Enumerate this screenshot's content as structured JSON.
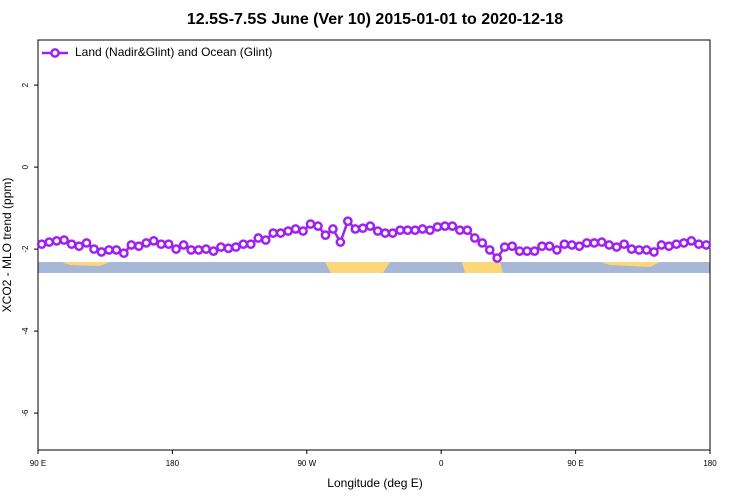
{
  "chart_data": {
    "type": "line",
    "title": "12.5S-7.5S June (Ver 10)   2015-01-01 to 2020-12-18",
    "x_label": "Longitude (deg E)",
    "y_label": "XCO2 - MLO trend (ppm)",
    "xlim": [
      90,
      540
    ],
    "ylim": [
      -6.9,
      3.1
    ],
    "xticks": [
      {
        "value": 90,
        "label": "90 E"
      },
      180,
      {
        "value": 270,
        "label": "90 W"
      },
      {
        "value": 360,
        "label": "0"
      },
      {
        "value": 450,
        "label": "90 E"
      },
      {
        "value": 540,
        "label": "180"
      }
    ],
    "yticks": [
      2,
      0,
      -2,
      -4,
      -6
    ],
    "legend": "top-left",
    "x": [
      92.5,
      97.5,
      102.5,
      107.5,
      112.5,
      117.5,
      122.5,
      127.5,
      132.5,
      137.5,
      142.5,
      147.5,
      152.5,
      157.5,
      162.5,
      167.5,
      172.5,
      177.5,
      182.5,
      187.5,
      192.5,
      197.5,
      202.5,
      207.5,
      212.5,
      217.5,
      222.5,
      227.5,
      232.5,
      237.5,
      242.5,
      247.5,
      252.5,
      257.5,
      262.5,
      267.5,
      272.5,
      277.5,
      282.5,
      287.5,
      292.5,
      297.5,
      302.5,
      307.5,
      312.5,
      317.5,
      322.5,
      327.5,
      332.5,
      337.5,
      342.5,
      347.5,
      352.5,
      357.5,
      362.5,
      367.5,
      372.5,
      377.5,
      382.5,
      387.5,
      392.5,
      397.5,
      402.5,
      407.5,
      412.5,
      417.5,
      422.5,
      427.5,
      432.5,
      437.5,
      442.5,
      447.5,
      452.5,
      457.5,
      462.5,
      467.5,
      472.5,
      477.5,
      482.5,
      487.5,
      492.5,
      497.5,
      502.5,
      507.5,
      512.5,
      517.5,
      522.5,
      527.5,
      532.5,
      537.5
    ],
    "series": [
      {
        "name": "Land (Nadir&Glint) and Ocean (Glint)",
        "color": "#a020f0",
        "values": [
          -1.88,
          -1.83,
          -1.8,
          -1.78,
          -1.88,
          -1.93,
          -1.85,
          -2.0,
          -2.07,
          -2.02,
          -2.02,
          -2.1,
          -1.9,
          -1.93,
          -1.85,
          -1.8,
          -1.88,
          -1.88,
          -2.0,
          -1.9,
          -2.02,
          -2.02,
          -2.0,
          -2.05,
          -1.95,
          -1.98,
          -1.95,
          -1.88,
          -1.88,
          -1.73,
          -1.78,
          -1.61,
          -1.61,
          -1.56,
          -1.51,
          -1.56,
          -1.39,
          -1.44,
          -1.66,
          -1.51,
          -1.83,
          -1.32,
          -1.51,
          -1.49,
          -1.44,
          -1.56,
          -1.61,
          -1.61,
          -1.54,
          -1.54,
          -1.54,
          -1.51,
          -1.54,
          -1.46,
          -1.44,
          -1.44,
          -1.54,
          -1.54,
          -1.73,
          -1.85,
          -2.02,
          -2.22,
          -1.95,
          -1.93,
          -2.05,
          -2.05,
          -2.05,
          -1.93,
          -1.93,
          -2.02,
          -1.88,
          -1.9,
          -1.93,
          -1.85,
          -1.85,
          -1.83,
          -1.9,
          -1.95,
          -1.88,
          -2.0,
          -2.02,
          -2.02,
          -2.07,
          -1.9,
          -1.93,
          -1.88,
          -1.85,
          -1.8,
          -1.88,
          -1.9
        ]
      }
    ]
  }
}
